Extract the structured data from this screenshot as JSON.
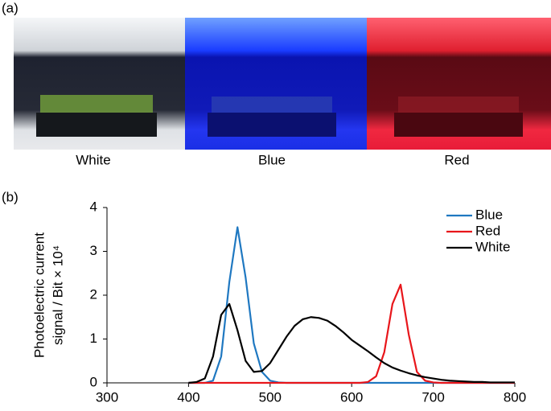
{
  "panel_a": {
    "label": "(a)",
    "captions": [
      "White",
      "Blue",
      "Red"
    ]
  },
  "panel_b": {
    "label": "(b)"
  },
  "chart_data": {
    "type": "line",
    "ylabel": [
      "Photoelectric current",
      "signal / Bit × 10⁴"
    ],
    "x": [
      400,
      410,
      420,
      430,
      440,
      450,
      460,
      470,
      480,
      490,
      500,
      510,
      520,
      530,
      540,
      550,
      560,
      570,
      580,
      590,
      600,
      610,
      620,
      630,
      640,
      650,
      660,
      670,
      680,
      690,
      700,
      710,
      720,
      730,
      740,
      750,
      760,
      770,
      780,
      790,
      800
    ],
    "series": [
      {
        "name": "Blue",
        "color": "#1f78c1",
        "values": [
          0,
          0,
          0,
          0.05,
          0.6,
          2.3,
          3.55,
          2.4,
          0.9,
          0.25,
          0.05,
          0.01,
          0,
          0,
          0,
          0,
          0,
          0,
          0,
          0,
          0,
          0,
          0,
          0,
          0,
          0,
          0,
          0,
          0,
          0,
          0,
          0,
          0,
          0,
          0,
          0,
          0,
          0,
          0,
          0,
          0
        ]
      },
      {
        "name": "Red",
        "color": "#e8161b",
        "values": [
          0,
          0,
          0,
          0,
          0,
          0,
          0,
          0,
          0,
          0,
          0,
          0,
          0,
          0,
          0,
          0,
          0,
          0,
          0,
          0,
          0,
          0,
          0.02,
          0.15,
          0.7,
          1.8,
          2.24,
          1.1,
          0.25,
          0.05,
          0.01,
          0,
          0,
          0,
          0,
          0,
          0,
          0,
          0,
          0,
          0
        ]
      },
      {
        "name": "White",
        "color": "#000000",
        "values": [
          0,
          0.02,
          0.1,
          0.6,
          1.55,
          1.8,
          1.2,
          0.5,
          0.25,
          0.27,
          0.45,
          0.75,
          1.05,
          1.3,
          1.45,
          1.5,
          1.48,
          1.42,
          1.3,
          1.15,
          0.98,
          0.85,
          0.72,
          0.58,
          0.45,
          0.35,
          0.28,
          0.22,
          0.17,
          0.13,
          0.1,
          0.07,
          0.05,
          0.04,
          0.03,
          0.02,
          0.02,
          0.01,
          0.01,
          0.01,
          0.01
        ]
      }
    ],
    "xlim": [
      300,
      800
    ],
    "xticks": [
      300,
      400,
      500,
      600,
      700,
      800
    ],
    "ylim": [
      0,
      4
    ],
    "yticks": [
      0,
      1,
      2,
      3,
      4
    ],
    "grid": false,
    "legend": "upper right"
  }
}
